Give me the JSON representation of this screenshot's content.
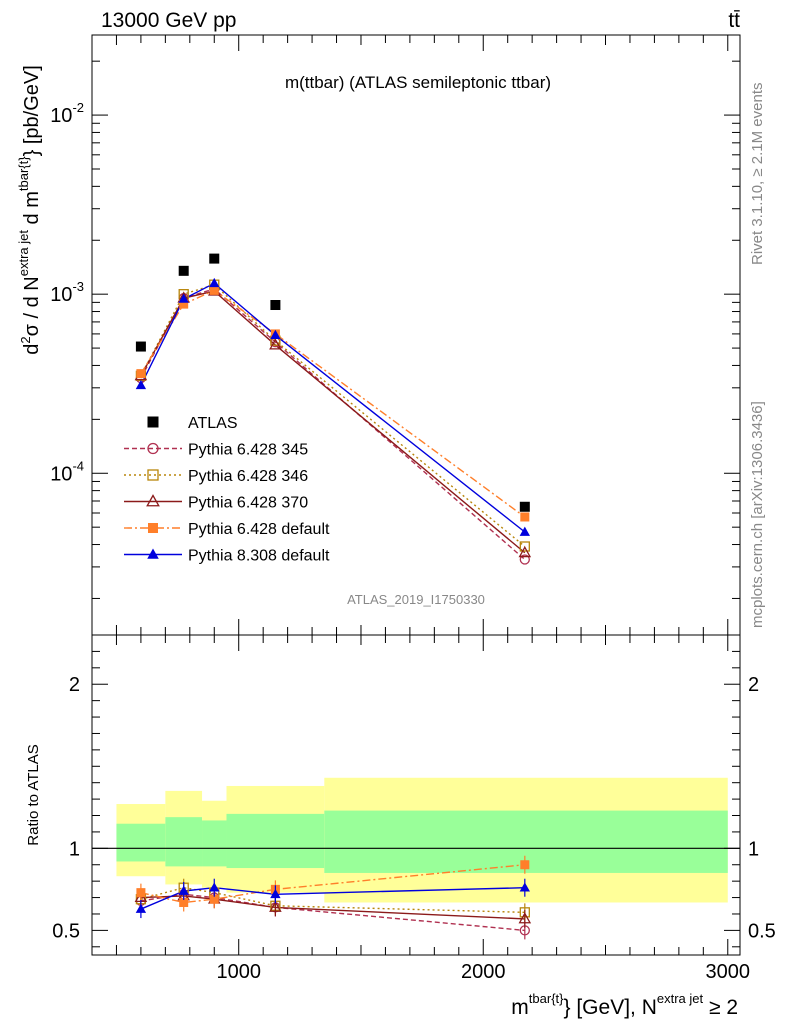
{
  "header": {
    "left": "13000 GeV pp",
    "right": "tt̄"
  },
  "side_text": {
    "rivet": "Rivet 3.1.10, ≥ 2.1M events",
    "mcplots": "mcplots.cern.ch [arXiv:1306.3436]"
  },
  "chart_data": [
    {
      "type": "scatter",
      "title": "m(ttbar) (ATLAS semileptonic ttbar)",
      "watermark": "ATLAS_2019_I1750330",
      "ylabel": "d²σ / d N^{extra jet} d m^{tbar{t}} [pb/GeV]",
      "yscale": "log",
      "ylim": [
        1.25e-05,
        0.028
      ],
      "xlim": [
        400,
        3050
      ],
      "y_ticks": [
        {
          "value": 0.0001,
          "base": "10",
          "exp": "-4"
        },
        {
          "value": 0.001,
          "base": "10",
          "exp": "-3"
        },
        {
          "value": 0.01,
          "base": "10",
          "exp": "-2"
        }
      ],
      "x": [
        600,
        775,
        900,
        1150,
        2170
      ],
      "series": [
        {
          "name": "ATLAS",
          "style": "data",
          "color": "#000000",
          "marker": "square-filled",
          "values": [
            0.00051,
            0.00135,
            0.00158,
            0.00087,
            6.5e-05
          ]
        },
        {
          "name": "Pythia 6.428 345",
          "style": "mc",
          "color": "#b03050",
          "marker": "circle-open",
          "dash": "5,3",
          "values": [
            0.00034,
            0.00095,
            0.00107,
            0.00054,
            3.3e-05
          ]
        },
        {
          "name": "Pythia 6.428 346",
          "style": "mc",
          "color": "#b8860b",
          "marker": "square-open",
          "dash": "2,3",
          "values": [
            0.00035,
            0.001,
            0.00113,
            0.00055,
            3.9e-05
          ]
        },
        {
          "name": "Pythia 6.428 370",
          "style": "mc",
          "color": "#8b1a1a",
          "marker": "triangle-open",
          "dash": "",
          "values": [
            0.00035,
            0.00095,
            0.00104,
            0.00052,
            3.6e-05
          ]
        },
        {
          "name": "Pythia 6.428 default",
          "style": "mc",
          "color": "#ff7f2a",
          "marker": "square-filled",
          "dash": "8,3,2,3",
          "values": [
            0.00036,
            0.00088,
            0.00105,
            0.0006,
            5.7e-05
          ]
        },
        {
          "name": "Pythia 8.308 default",
          "style": "mc",
          "color": "#0000dd",
          "marker": "triangle-filled",
          "dash": "",
          "values": [
            0.00031,
            0.00094,
            0.00115,
            0.00059,
            4.7e-05
          ]
        }
      ]
    },
    {
      "type": "scatter",
      "ylabel": "Ratio to ATLAS",
      "xlabel": "m^{tbar{t}} [GeV], N^{extra jet} ≥ 2",
      "ylim": [
        0.35,
        2.3
      ],
      "xlim": [
        400,
        3050
      ],
      "x_ticks": [
        1000,
        2000,
        3000
      ],
      "y_ticks": [
        0.5,
        1,
        2
      ],
      "bands": {
        "edges": [
          500,
          700,
          850,
          950,
          1350,
          3000
        ],
        "yellow": [
          [
            0.83,
            1.27
          ],
          [
            0.78,
            1.35
          ],
          [
            0.76,
            1.29
          ],
          [
            0.73,
            1.38
          ],
          [
            0.67,
            1.43
          ]
        ],
        "green": [
          [
            0.92,
            1.15
          ],
          [
            0.89,
            1.19
          ],
          [
            0.89,
            1.17
          ],
          [
            0.88,
            1.21
          ],
          [
            0.85,
            1.23
          ]
        ],
        "yellow_color": "#ffff99",
        "green_color": "#99ff99"
      },
      "x": [
        600,
        775,
        900,
        1150,
        2170
      ],
      "series": [
        {
          "name": "Pythia 6.428 345",
          "color": "#b03050",
          "marker": "circle-open",
          "dash": "5,3",
          "values": [
            0.68,
            0.72,
            0.7,
            0.64,
            0.5
          ]
        },
        {
          "name": "Pythia 6.428 346",
          "color": "#b8860b",
          "marker": "square-open",
          "dash": "2,3",
          "values": [
            0.69,
            0.76,
            0.73,
            0.65,
            0.61
          ]
        },
        {
          "name": "Pythia 6.428 370",
          "color": "#8b1a1a",
          "marker": "triangle-open",
          "dash": "",
          "values": [
            0.7,
            0.71,
            0.69,
            0.64,
            0.57
          ]
        },
        {
          "name": "Pythia 6.428 default",
          "color": "#ff7f2a",
          "marker": "square-filled",
          "dash": "8,3,2,3",
          "values": [
            0.73,
            0.67,
            0.69,
            0.75,
            0.9
          ]
        },
        {
          "name": "Pythia 8.308 default",
          "color": "#0000dd",
          "marker": "triangle-filled",
          "dash": "",
          "values": [
            0.63,
            0.74,
            0.76,
            0.72,
            0.76
          ]
        }
      ]
    }
  ]
}
